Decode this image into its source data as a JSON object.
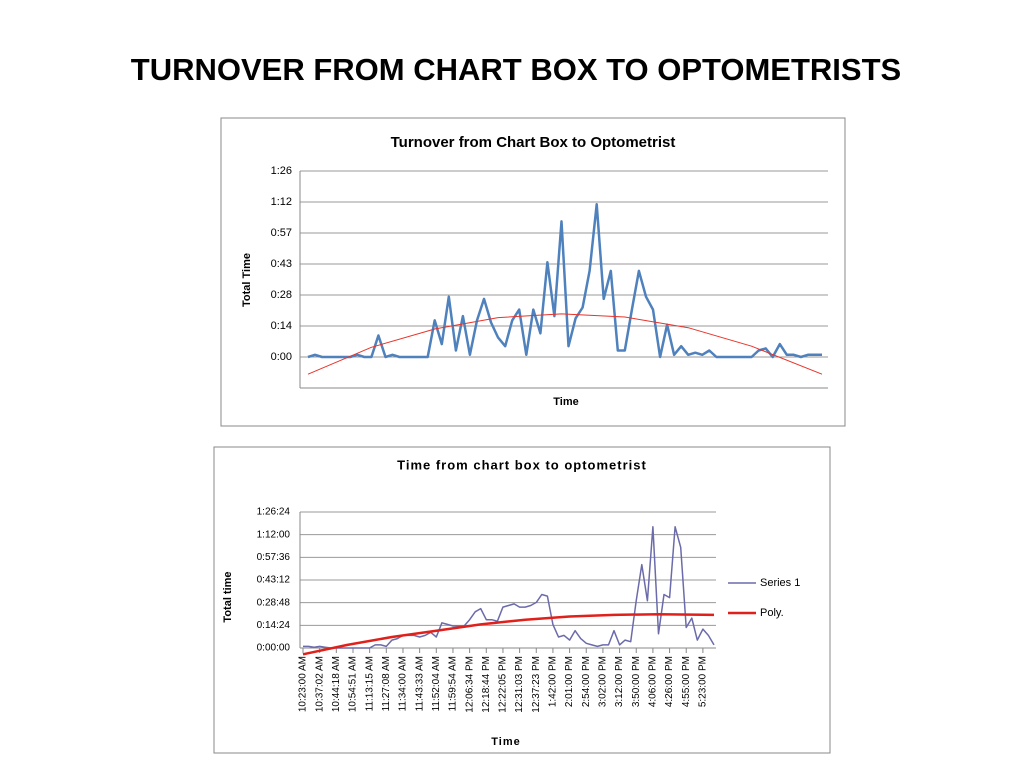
{
  "title": "TURNOVER FROM CHART BOX TO OPTOMETRISTS",
  "chart_data": [
    {
      "type": "line",
      "title": "Turnover from Chart Box to Optometrist",
      "ylabel": "Total Time",
      "xlabel": "Time",
      "ylim": [
        -14.4,
        86.4
      ],
      "yticks": [
        {
          "value": 0,
          "label": "0:00"
        },
        {
          "value": 14.4,
          "label": "0:14"
        },
        {
          "value": 28.8,
          "label": "0:28"
        },
        {
          "value": 43.2,
          "label": "0:43"
        },
        {
          "value": 57.6,
          "label": "0:57"
        },
        {
          "value": 72,
          "label": "1:12"
        },
        {
          "value": 86.4,
          "label": "1:26"
        }
      ],
      "grid": true,
      "series": [
        {
          "color": "#4f81bd",
          "width": 2.5,
          "values": [
            0,
            1,
            0,
            0,
            0,
            0,
            0,
            1,
            0,
            0,
            10,
            0,
            1,
            0,
            0,
            0,
            0,
            0,
            17,
            6,
            28,
            3,
            19,
            1,
            17,
            27,
            16,
            9,
            5,
            17,
            22,
            1,
            22,
            11,
            44,
            19,
            63,
            5,
            18,
            23,
            40,
            71,
            27,
            40,
            3,
            3,
            22,
            40,
            28,
            22,
            0,
            15,
            1,
            5,
            1,
            2,
            1,
            3,
            0,
            0,
            0,
            0,
            0,
            0,
            3,
            4,
            0,
            6,
            1,
            1,
            0,
            1,
            1,
            1
          ]
        },
        {
          "color": "#e8332a",
          "width": 1,
          "x": [
            0,
            9,
            18,
            27,
            36,
            45,
            54,
            63,
            73
          ],
          "values": [
            -8,
            4.5,
            13,
            18.3,
            20,
            18.6,
            13.6,
            5,
            -8
          ]
        }
      ]
    },
    {
      "type": "line",
      "title": "Time from chart box to optometrist",
      "ylabel": "Total time",
      "xlabel": "Time",
      "ylim": [
        0,
        86.4
      ],
      "yticks": [
        {
          "value": 0,
          "label": "0:00:00"
        },
        {
          "value": 14.4,
          "label": "0:14:24"
        },
        {
          "value": 28.8,
          "label": "0:28:48"
        },
        {
          "value": 43.2,
          "label": "0:43:12"
        },
        {
          "value": 57.6,
          "label": "0:57:36"
        },
        {
          "value": 72,
          "label": "1:12:00"
        },
        {
          "value": 86.4,
          "label": "1:26:24"
        }
      ],
      "grid": true,
      "legend": "right",
      "categories": [
        "10:23:00 AM",
        null,
        null,
        "10:37:02 AM",
        null,
        null,
        "10:44:18 AM",
        null,
        null,
        "10:54:51 AM",
        null,
        null,
        "11:13:15 AM",
        null,
        null,
        "11:27:08 AM",
        null,
        null,
        "11:34:00 AM",
        null,
        null,
        "11:43:33 AM",
        null,
        null,
        "11:52:04 AM",
        null,
        null,
        "11:59:54 AM",
        null,
        null,
        "12:06:34 PM",
        null,
        null,
        "12:18:44 PM",
        null,
        null,
        "12:22:05 PM",
        null,
        null,
        "12:31:03 PM",
        null,
        null,
        "12:37:23 PM",
        null,
        null,
        "1:42:00 PM",
        null,
        null,
        "2:01:00 PM",
        null,
        null,
        "2:54:00 PM",
        null,
        null,
        "3:02:00 PM",
        null,
        null,
        "3:12:00 PM",
        null,
        null,
        "3:50:00 PM",
        null,
        null,
        "4:06:00 PM",
        null,
        null,
        "4:26:00 PM",
        null,
        null,
        "4:55:00 PM",
        null,
        null,
        "5:23:00 PM",
        null,
        null
      ],
      "series": [
        {
          "name": "Series 1",
          "color": "#6b6bab",
          "width": 1.5,
          "values": [
            1,
            1,
            0.5,
            1,
            0.5,
            0,
            0,
            0,
            0,
            0,
            0,
            0,
            0,
            2,
            2,
            1,
            5,
            6,
            8,
            8,
            8,
            7,
            8,
            10,
            7,
            16,
            15,
            14,
            14,
            14,
            18,
            23,
            25,
            18,
            18,
            17,
            26,
            27,
            28,
            26,
            26,
            27,
            29,
            34,
            33,
            15,
            7,
            8,
            5,
            11,
            6,
            3,
            2,
            1,
            2,
            2,
            11,
            2,
            5,
            4,
            30,
            53,
            30,
            77,
            9,
            34,
            32,
            77,
            64,
            13,
            19,
            5,
            12,
            8,
            2
          ]
        },
        {
          "name": "Poly.",
          "color": "#e0201b",
          "width": 2.5,
          "x": [
            0,
            8,
            16,
            24,
            32,
            40,
            48,
            56,
            64,
            74
          ],
          "values": [
            -4,
            2,
            7,
            11,
            15,
            18,
            20,
            21,
            21.5,
            21
          ]
        }
      ]
    }
  ]
}
